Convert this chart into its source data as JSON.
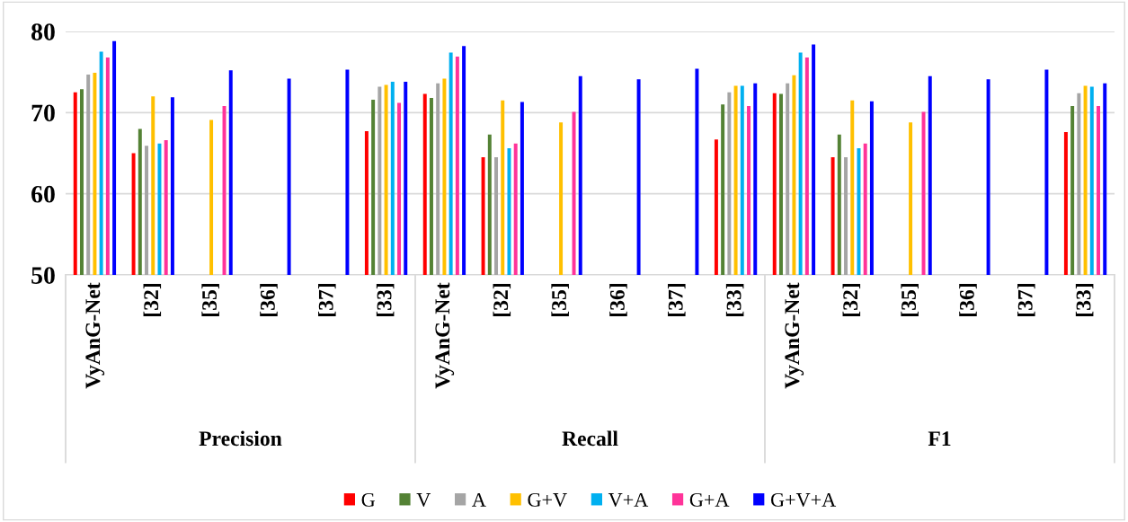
{
  "chart_data": {
    "type": "bar",
    "categories": [
      "VyAnG-Net",
      "[32]",
      "[35]",
      "[36]",
      "[37]",
      "[33]",
      "VyAnG-Net",
      "[32]",
      "[35]",
      "[36]",
      "[37]",
      "[33]",
      "VyAnG-Net",
      "[32]",
      "[35]",
      "[36]",
      "[37]",
      "[33]"
    ],
    "annotations": [
      "Precision",
      "Recall",
      "F1"
    ],
    "series": [
      {
        "name": "G",
        "color": "#ff0000",
        "values": [
          72.5,
          65.0,
          null,
          null,
          null,
          67.7,
          72.3,
          64.5,
          null,
          null,
          null,
          66.7,
          72.4,
          64.5,
          null,
          null,
          null,
          67.6
        ]
      },
      {
        "name": "V",
        "color": "#548235",
        "values": [
          72.9,
          68.0,
          null,
          null,
          null,
          71.6,
          71.8,
          67.3,
          null,
          null,
          null,
          71.0,
          72.3,
          67.3,
          null,
          null,
          null,
          70.8
        ]
      },
      {
        "name": "A",
        "color": "#a5a5a5",
        "values": [
          74.7,
          65.9,
          null,
          null,
          null,
          73.2,
          73.6,
          64.5,
          null,
          null,
          null,
          72.5,
          73.6,
          64.5,
          null,
          null,
          null,
          72.4
        ]
      },
      {
        "name": "G+V",
        "color": "#ffc000",
        "values": [
          74.9,
          72.0,
          69.1,
          null,
          null,
          73.4,
          74.2,
          71.5,
          68.8,
          null,
          null,
          73.3,
          74.6,
          71.5,
          68.8,
          null,
          null,
          73.3
        ]
      },
      {
        "name": "V+A",
        "color": "#00b0f0",
        "values": [
          77.5,
          66.2,
          null,
          null,
          null,
          73.8,
          77.4,
          65.6,
          null,
          null,
          null,
          73.3,
          77.4,
          65.6,
          null,
          null,
          null,
          73.2
        ]
      },
      {
        "name": "G+A",
        "color": "#ff3399",
        "values": [
          76.8,
          66.6,
          70.8,
          null,
          null,
          71.2,
          76.9,
          66.2,
          70.1,
          null,
          null,
          70.8,
          76.8,
          66.2,
          70.1,
          null,
          null,
          70.8
        ]
      },
      {
        "name": "G+V+A",
        "color": "#0000ff",
        "values": [
          78.8,
          71.9,
          75.2,
          74.2,
          75.3,
          73.8,
          78.2,
          71.3,
          74.5,
          74.1,
          75.4,
          73.6,
          78.4,
          71.4,
          74.5,
          74.1,
          75.3,
          73.6
        ]
      }
    ],
    "ylim": [
      50,
      80
    ],
    "yticks": [
      50,
      60,
      70,
      80
    ],
    "grid": "y",
    "legend": "bottom"
  }
}
